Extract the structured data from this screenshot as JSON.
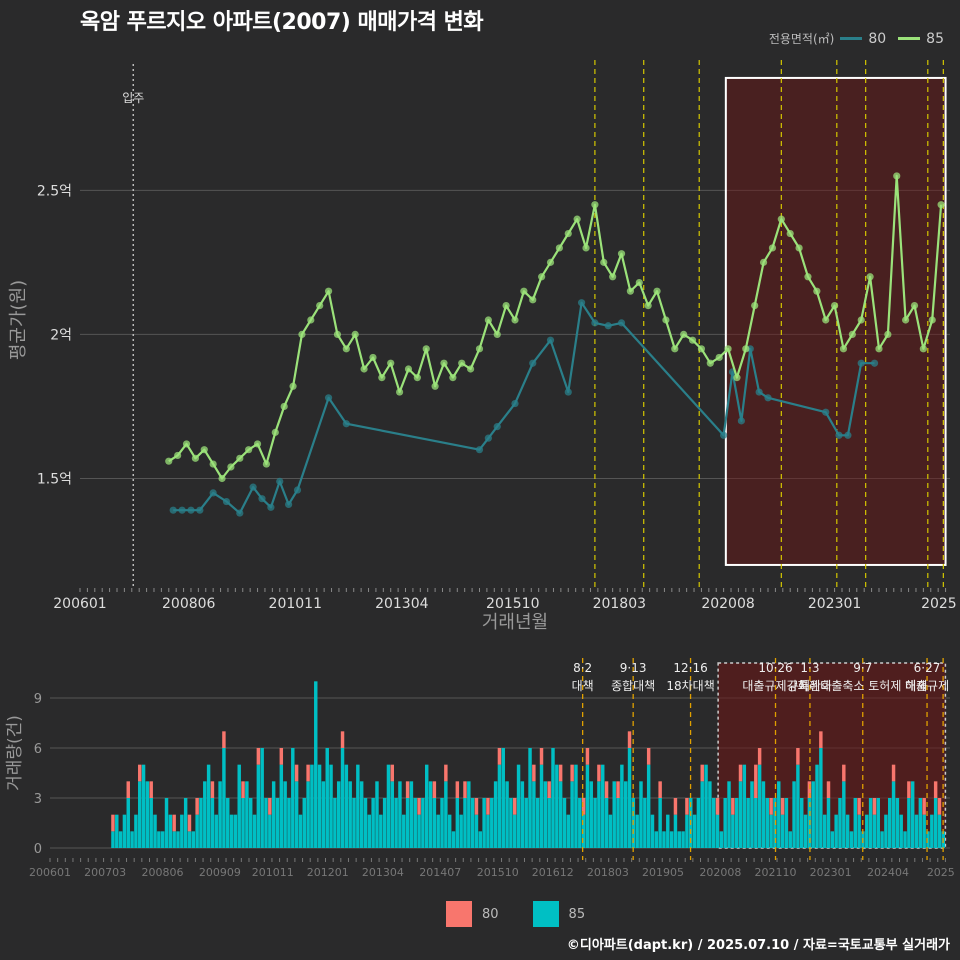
{
  "title": "옥암 푸르지오 아파트(2007) 매매가격 변화",
  "legend": {
    "title": "전용면적(㎡)",
    "items": [
      {
        "label": "80",
        "color": "#2a7f8a"
      },
      {
        "label": "85",
        "color": "#9be27a"
      }
    ]
  },
  "bar_legend": {
    "items": [
      {
        "label": "80",
        "color": "#f8766d"
      },
      {
        "label": "85",
        "color": "#00bfc4"
      }
    ]
  },
  "credit": "©디아파트(dapt.kr) / 2025.07.10 / 자료=국토교통부 실거래가",
  "chart_data": [
    {
      "type": "line",
      "title": "옥암 푸르지오 아파트(2007) 매매가격 변화",
      "xlabel": "거래년월",
      "ylabel": "평균가(원)",
      "ylim": [
        1.12,
        2.98
      ],
      "ytick_values": [
        1.5,
        2.0,
        2.5
      ],
      "ytick_labels": [
        "1.5억",
        "2억",
        "2.5억"
      ],
      "xtick_labels": [
        "200601",
        "200806",
        "201011",
        "201304",
        "201510",
        "201803",
        "202008",
        "202301",
        "2025"
      ],
      "xlim": [
        2006.0,
        2025.6
      ],
      "move_in": {
        "label": "입주",
        "x": 2007.2
      },
      "policy_lines": [
        2017.6,
        2018.7,
        2019.95,
        2021.8,
        2023.05,
        2023.7,
        2025.1,
        2025.45
      ],
      "highlight": {
        "x": [
          2020.55,
          2025.5
        ],
        "y": [
          1.2,
          2.89
        ]
      },
      "series": [
        {
          "name": "80",
          "color": "#2a7f8a",
          "x": [
            2008.1,
            2008.3,
            2008.5,
            2008.7,
            2009.0,
            2009.3,
            2009.6,
            2009.9,
            2010.1,
            2010.3,
            2010.5,
            2010.7,
            2010.9,
            2011.6,
            2012.0,
            2015.0,
            2015.2,
            2015.4,
            2015.8,
            2016.2,
            2016.6,
            2017.0,
            2017.3,
            2017.6,
            2017.9,
            2018.2,
            2020.5,
            2020.7,
            2020.9,
            2021.1,
            2021.3,
            2021.5,
            2022.8,
            2023.1,
            2023.3,
            2023.6,
            2023.9
          ],
          "y": [
            1.39,
            1.39,
            1.39,
            1.39,
            1.45,
            1.42,
            1.38,
            1.47,
            1.43,
            1.4,
            1.49,
            1.41,
            1.46,
            1.78,
            1.69,
            1.6,
            1.64,
            1.68,
            1.76,
            1.9,
            1.98,
            1.8,
            2.11,
            2.04,
            2.03,
            2.04,
            1.65,
            1.87,
            1.7,
            1.95,
            1.8,
            1.78,
            1.73,
            1.65,
            1.65,
            1.9,
            1.9
          ]
        },
        {
          "name": "85",
          "color": "#9be27a",
          "x": [
            2008.0,
            2008.2,
            2008.4,
            2008.6,
            2008.8,
            2009.0,
            2009.2,
            2009.4,
            2009.6,
            2009.8,
            2010.0,
            2010.2,
            2010.4,
            2010.6,
            2010.8,
            2011.0,
            2011.2,
            2011.4,
            2011.6,
            2011.8,
            2012.0,
            2012.2,
            2012.4,
            2012.6,
            2012.8,
            2013.0,
            2013.2,
            2013.4,
            2013.6,
            2013.8,
            2014.0,
            2014.2,
            2014.4,
            2014.6,
            2014.8,
            2015.0,
            2015.2,
            2015.4,
            2015.6,
            2015.8,
            2016.0,
            2016.2,
            2016.4,
            2016.6,
            2016.8,
            2017.0,
            2017.2,
            2017.4,
            2017.6,
            2017.8,
            2018.0,
            2018.2,
            2018.4,
            2018.6,
            2018.8,
            2019.0,
            2019.2,
            2019.4,
            2019.6,
            2019.8,
            2020.0,
            2020.2,
            2020.4,
            2020.6,
            2020.8,
            2021.0,
            2021.2,
            2021.4,
            2021.6,
            2021.8,
            2022.0,
            2022.2,
            2022.4,
            2022.6,
            2022.8,
            2023.0,
            2023.2,
            2023.4,
            2023.6,
            2023.8,
            2024.0,
            2024.2,
            2024.4,
            2024.6,
            2024.8,
            2025.0,
            2025.2,
            2025.4
          ],
          "y": [
            1.56,
            1.58,
            1.62,
            1.57,
            1.6,
            1.55,
            1.5,
            1.54,
            1.57,
            1.6,
            1.62,
            1.55,
            1.66,
            1.75,
            1.82,
            2.0,
            2.05,
            2.1,
            2.15,
            2.0,
            1.95,
            2.0,
            1.88,
            1.92,
            1.85,
            1.9,
            1.8,
            1.88,
            1.85,
            1.95,
            1.82,
            1.9,
            1.85,
            1.9,
            1.88,
            1.95,
            2.05,
            2.0,
            2.1,
            2.05,
            2.15,
            2.12,
            2.2,
            2.25,
            2.3,
            2.35,
            2.4,
            2.3,
            2.45,
            2.25,
            2.2,
            2.28,
            2.15,
            2.18,
            2.1,
            2.15,
            2.05,
            1.95,
            2.0,
            1.98,
            1.95,
            1.9,
            1.92,
            1.95,
            1.85,
            1.95,
            2.1,
            2.25,
            2.3,
            2.4,
            2.35,
            2.3,
            2.2,
            2.15,
            2.05,
            2.1,
            1.95,
            2.0,
            2.05,
            2.2,
            1.95,
            2.0,
            2.55,
            2.05,
            2.1,
            1.95,
            2.05,
            2.45
          ]
        }
      ]
    },
    {
      "type": "bar",
      "title": "",
      "xlabel": "",
      "ylabel": "거래량(건)",
      "ylim": [
        0,
        11.4
      ],
      "ytick_values": [
        0,
        3,
        6,
        9
      ],
      "ytick_labels": [
        "0",
        "3",
        "6",
        "9"
      ],
      "xtick_labels": [
        "200601",
        "200703",
        "200806",
        "200909",
        "201011",
        "201201",
        "201304",
        "201407",
        "201510",
        "201612",
        "201803",
        "201905",
        "202008",
        "202110",
        "202301",
        "202404",
        "2025"
      ],
      "xlim": [
        2006.0,
        2025.6
      ],
      "highlight": {
        "x": [
          2020.55,
          2025.5
        ],
        "y": [
          0,
          11.1
        ]
      },
      "policy_lines": [
        {
          "x": 2017.6,
          "date": "8·2",
          "text": "대책"
        },
        {
          "x": 2018.7,
          "date": "9·13",
          "text": "종합대책"
        },
        {
          "x": 2019.95,
          "date": "12·16",
          "text": "18차대책"
        },
        {
          "x": 2021.8,
          "date": "10·26",
          "text": "대출규제강화"
        },
        {
          "x": 2022.55,
          "date": "1·3",
          "text": "규제완화"
        },
        {
          "x": 2023.7,
          "date": "9·7",
          "text": "특례대출축소 토허제 해제"
        },
        {
          "x": 2025.1,
          "date": "6·27",
          "text": "대출규제"
        },
        {
          "x": 2025.45,
          "date": "",
          "text": ""
        }
      ],
      "series": [
        {
          "name": "80",
          "color": "#f8766d",
          "values": [
            0,
            0,
            0,
            0,
            0,
            0,
            0,
            0,
            0,
            0,
            0,
            0,
            0,
            0,
            0,
            0,
            1,
            0,
            0,
            0,
            1,
            0,
            0,
            1,
            0,
            0,
            1,
            0,
            0,
            0,
            0,
            0,
            1,
            0,
            0,
            0,
            1,
            0,
            1,
            0,
            0,
            0,
            1,
            0,
            0,
            1,
            0,
            0,
            0,
            0,
            1,
            0,
            0,
            0,
            1,
            0,
            0,
            1,
            0,
            0,
            1,
            0,
            0,
            0,
            1,
            0,
            0,
            1,
            0,
            0,
            0,
            0,
            0,
            0,
            0,
            0,
            1,
            0,
            0,
            0,
            0,
            0,
            0,
            0,
            0,
            0,
            0,
            0,
            0,
            1,
            0,
            0,
            0,
            1,
            0,
            0,
            1,
            0,
            0,
            0,
            1,
            0,
            0,
            1,
            0,
            0,
            1,
            0,
            1,
            0,
            0,
            1,
            0,
            0,
            1,
            0,
            0,
            1,
            0,
            0,
            0,
            1,
            0,
            0,
            0,
            0,
            1,
            0,
            1,
            0,
            1,
            0,
            0,
            1,
            0,
            0,
            1,
            0,
            0,
            1,
            1,
            0,
            0,
            1,
            0,
            1,
            0,
            0,
            1,
            0,
            0,
            1,
            0,
            0,
            0,
            0,
            1,
            0,
            0,
            1,
            0,
            0,
            0,
            1,
            0,
            0,
            1,
            0,
            0,
            0,
            1,
            0,
            0,
            0,
            1,
            0,
            0,
            0,
            1,
            0,
            1,
            0,
            0,
            0,
            2,
            1,
            0,
            0,
            1,
            0,
            0,
            1,
            0,
            0,
            0,
            1,
            0,
            0,
            1,
            0,
            0,
            1,
            0,
            1,
            0,
            0,
            0,
            1,
            0,
            0,
            0,
            1,
            0,
            0,
            0,
            1,
            0,
            0,
            0,
            0,
            1,
            0,
            0,
            0,
            1,
            0,
            0,
            0,
            1,
            0,
            0,
            1,
            1,
            0
          ]
        },
        {
          "name": "85",
          "color": "#00bfc4",
          "values": [
            0,
            0,
            0,
            0,
            0,
            0,
            0,
            0,
            0,
            0,
            0,
            0,
            0,
            0,
            0,
            0,
            1,
            2,
            1,
            2,
            3,
            1,
            2,
            4,
            5,
            4,
            3,
            2,
            1,
            1,
            3,
            2,
            1,
            1,
            2,
            3,
            1,
            1,
            2,
            3,
            4,
            5,
            3,
            2,
            4,
            6,
            3,
            2,
            2,
            5,
            3,
            4,
            3,
            2,
            5,
            6,
            3,
            2,
            4,
            3,
            5,
            4,
            3,
            6,
            4,
            2,
            3,
            4,
            5,
            10,
            5,
            4,
            6,
            5,
            3,
            4,
            6,
            5,
            4,
            3,
            5,
            4,
            3,
            2,
            3,
            4,
            2,
            3,
            5,
            4,
            3,
            4,
            2,
            3,
            4,
            3,
            2,
            3,
            5,
            4,
            3,
            2,
            3,
            4,
            2,
            1,
            3,
            2,
            3,
            4,
            3,
            2,
            1,
            3,
            2,
            3,
            4,
            5,
            6,
            4,
            3,
            2,
            5,
            4,
            3,
            6,
            4,
            3,
            5,
            4,
            3,
            6,
            5,
            4,
            3,
            2,
            4,
            5,
            3,
            2,
            5,
            4,
            3,
            4,
            5,
            3,
            2,
            4,
            3,
            5,
            4,
            6,
            3,
            2,
            4,
            3,
            5,
            2,
            1,
            3,
            1,
            2,
            1,
            2,
            1,
            1,
            2,
            3,
            2,
            3,
            4,
            5,
            4,
            3,
            2,
            1,
            3,
            4,
            2,
            3,
            4,
            5,
            3,
            4,
            3,
            5,
            4,
            3,
            2,
            3,
            4,
            2,
            3,
            1,
            4,
            5,
            3,
            2,
            3,
            4,
            5,
            6,
            2,
            3,
            1,
            2,
            3,
            4,
            2,
            1,
            3,
            2,
            1,
            2,
            3,
            2,
            3,
            1,
            2,
            3,
            4,
            3,
            2,
            1,
            3,
            4,
            2,
            3,
            2,
            1,
            2,
            3,
            2,
            1
          ]
        }
      ],
      "start_x": 2006.0,
      "step_months": 1
    }
  ]
}
